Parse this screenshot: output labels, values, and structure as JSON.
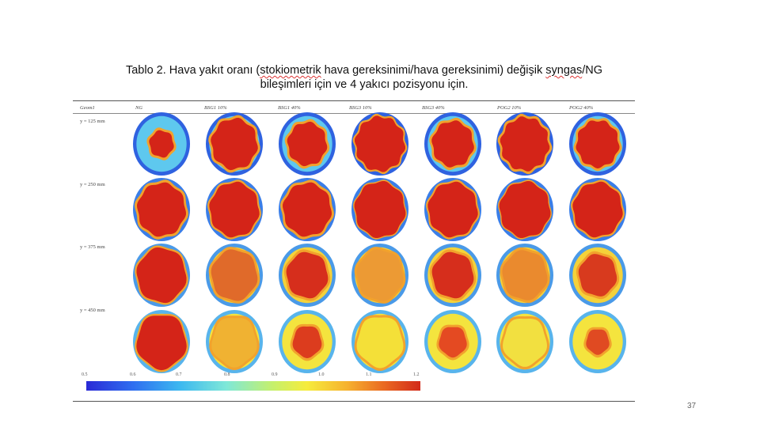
{
  "caption": {
    "line1_a": "Tablo 2. Hava yakıt oranı (",
    "line1_w1": "stokiometrik",
    "line1_b": " hava gereksinimi/hava gereksinimi) değişik ",
    "line1_w2": "syngas",
    "line1_c": "/NG",
    "line2": "bileşimleri için ve 4 yakıcı pozisyonu için."
  },
  "table": {
    "corner": "Geom1",
    "columns": [
      "NG",
      "BSG1 10%",
      "BSG1 40%",
      "BSG3 10%",
      "BSG3 40%",
      "POG2 10%",
      "POG2 40%"
    ],
    "rows": [
      "y = 125 mm",
      "y = 250 mm",
      "y = 375 mm",
      "y = 450 mm"
    ]
  },
  "colorbar": {
    "ticks": [
      "0.5",
      "0.6",
      "0.7",
      "0.8",
      "0.9",
      "1.0",
      "1.1",
      "1.2"
    ],
    "colors": [
      "#2a2ad6",
      "#3cb8f0",
      "#c6f06a",
      "#f6ec3c",
      "#ea6a22",
      "#d22a1a"
    ]
  },
  "page_number": "37"
}
